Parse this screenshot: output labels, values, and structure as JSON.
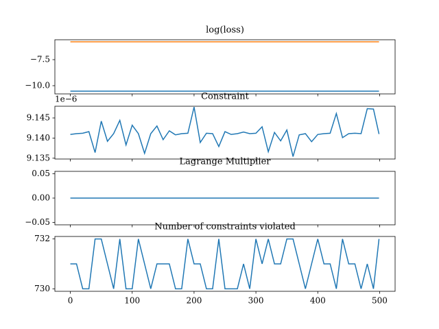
{
  "chart_data": [
    {
      "type": "line",
      "title": "log(loss)",
      "x": [
        0,
        10,
        20,
        30,
        40,
        50,
        60,
        70,
        80,
        90,
        100,
        110,
        120,
        130,
        140,
        150,
        160,
        170,
        180,
        190,
        200,
        210,
        220,
        230,
        240,
        250,
        260,
        270,
        280,
        290,
        300,
        310,
        320,
        330,
        340,
        350,
        360,
        370,
        380,
        390,
        400,
        410,
        420,
        430,
        440,
        450,
        460,
        470,
        480,
        490,
        499
      ],
      "series": [
        {
          "color": "#1f77b4",
          "values": [
            -10.53,
            -10.53,
            -10.53,
            -10.53,
            -10.53,
            -10.53,
            -10.53,
            -10.53,
            -10.53,
            -10.53,
            -10.53,
            -10.53,
            -10.53,
            -10.53,
            -10.53,
            -10.53,
            -10.53,
            -10.53,
            -10.53,
            -10.53,
            -10.53,
            -10.53,
            -10.53,
            -10.53,
            -10.53,
            -10.53,
            -10.53,
            -10.53,
            -10.53,
            -10.53,
            -10.53,
            -10.53,
            -10.53,
            -10.53,
            -10.53,
            -10.53,
            -10.53,
            -10.53,
            -10.53,
            -10.53,
            -10.53,
            -10.53,
            -10.53,
            -10.53,
            -10.53,
            -10.53,
            -10.53,
            -10.53,
            -10.53,
            -10.53,
            -10.53
          ]
        },
        {
          "color": "#ff7f0e",
          "values": [
            -5.79,
            -5.79,
            -5.79,
            -5.79,
            -5.79,
            -5.79,
            -5.79,
            -5.79,
            -5.79,
            -5.79,
            -5.79,
            -5.79,
            -5.79,
            -5.79,
            -5.79,
            -5.79,
            -5.79,
            -5.79,
            -5.79,
            -5.79,
            -5.79,
            -5.79,
            -5.79,
            -5.79,
            -5.79,
            -5.79,
            -5.79,
            -5.79,
            -5.79,
            -5.79,
            -5.79,
            -5.79,
            -5.79,
            -5.79,
            -5.79,
            -5.79,
            -5.79,
            -5.79,
            -5.79,
            -5.79,
            -5.79,
            -5.79,
            -5.79,
            -5.79,
            -5.79,
            -5.79,
            -5.79,
            -5.79,
            -5.79,
            -5.79,
            -5.79
          ]
        }
      ],
      "xlim": [
        -25,
        525
      ],
      "ylim": [
        -10.79,
        -5.59
      ],
      "yticks": [
        {
          "value": -10,
          "label": "−10.0"
        },
        {
          "value": -7.5,
          "label": "−7.5"
        }
      ]
    },
    {
      "type": "line",
      "title": "Constraint",
      "offset_text": "1e−6",
      "x": [
        0,
        10,
        20,
        30,
        40,
        50,
        60,
        70,
        80,
        90,
        100,
        110,
        120,
        130,
        140,
        150,
        160,
        170,
        180,
        190,
        200,
        210,
        220,
        230,
        240,
        250,
        260,
        270,
        280,
        290,
        300,
        310,
        320,
        330,
        340,
        350,
        360,
        370,
        380,
        390,
        400,
        410,
        420,
        430,
        440,
        450,
        460,
        470,
        480,
        490,
        499
      ],
      "series": [
        {
          "color": "#1f77b4",
          "values": [
            9.1409,
            9.1411,
            9.1412,
            9.1416,
            9.1364,
            9.1442,
            9.1392,
            9.1411,
            9.1444,
            9.1383,
            9.1432,
            9.1411,
            9.1362,
            9.1411,
            9.143,
            9.1396,
            9.1418,
            9.1408,
            9.1411,
            9.1412,
            9.1477,
            9.1389,
            9.1412,
            9.1411,
            9.1379,
            9.1416,
            9.1409,
            9.1411,
            9.1415,
            9.1411,
            9.1412,
            9.1428,
            9.1366,
            9.1414,
            9.1393,
            9.142,
            9.1354,
            9.1408,
            9.1411,
            9.1391,
            9.1409,
            9.1411,
            9.1412,
            9.1461,
            9.1401,
            9.1411,
            9.1412,
            9.1411,
            9.1473,
            9.1472,
            9.141
          ]
        }
      ],
      "xlim": [
        -25,
        525
      ],
      "ylim": [
        9.1348,
        9.1479
      ],
      "yticks": [
        9.135,
        {
          "value": 9.14,
          "label": "9.140"
        },
        9.145
      ]
    },
    {
      "type": "line",
      "title": "Lagrange Multiplier",
      "x": [
        0,
        10,
        20,
        30,
        40,
        50,
        60,
        70,
        80,
        90,
        100,
        110,
        120,
        130,
        140,
        150,
        160,
        170,
        180,
        190,
        200,
        210,
        220,
        230,
        240,
        250,
        260,
        270,
        280,
        290,
        300,
        310,
        320,
        330,
        340,
        350,
        360,
        370,
        380,
        390,
        400,
        410,
        420,
        430,
        440,
        450,
        460,
        470,
        480,
        490,
        499
      ],
      "series": [
        {
          "color": "#1f77b4",
          "values": [
            0,
            0,
            0,
            0,
            0,
            0,
            0,
            0,
            0,
            0,
            0,
            0,
            0,
            0,
            0,
            0,
            0,
            0,
            0,
            0,
            0,
            0,
            0,
            0,
            0,
            0,
            0,
            0,
            0,
            0,
            0,
            0,
            0,
            0,
            0,
            0,
            0,
            0,
            0,
            0,
            0,
            0,
            0,
            0,
            0,
            0,
            0,
            0,
            0,
            0,
            0
          ]
        }
      ],
      "xlim": [
        -25,
        525
      ],
      "ylim": [
        -0.055,
        0.055
      ],
      "yticks": [
        {
          "value": -0.05,
          "label": "−0.05"
        },
        {
          "value": 0,
          "label": "0.00"
        },
        0.05
      ]
    },
    {
      "type": "line",
      "title": "Number of constraints violated",
      "x": [
        0,
        10,
        20,
        30,
        40,
        50,
        60,
        70,
        80,
        90,
        100,
        110,
        120,
        130,
        140,
        150,
        160,
        170,
        180,
        190,
        200,
        210,
        220,
        230,
        240,
        250,
        260,
        270,
        280,
        290,
        300,
        310,
        320,
        330,
        340,
        350,
        360,
        370,
        380,
        390,
        400,
        410,
        420,
        430,
        440,
        450,
        460,
        470,
        480,
        490,
        499
      ],
      "series": [
        {
          "color": "#1f77b4",
          "values": [
            731,
            731,
            730,
            730,
            732,
            732,
            731,
            730,
            732,
            730,
            730,
            732,
            731,
            730,
            731,
            731,
            731,
            730,
            730,
            732,
            731,
            731,
            730,
            730,
            732,
            730,
            730,
            730,
            731,
            730,
            732,
            731,
            732,
            731,
            731,
            732,
            732,
            731,
            730,
            731,
            732,
            731,
            731,
            730,
            732,
            731,
            731,
            730,
            731,
            730,
            732
          ]
        }
      ],
      "xlim": [
        -25,
        525
      ],
      "ylim": [
        729.9,
        732.1
      ],
      "yticks": [
        730,
        732
      ],
      "xticks": [
        0,
        100,
        200,
        300,
        400,
        500
      ]
    }
  ]
}
